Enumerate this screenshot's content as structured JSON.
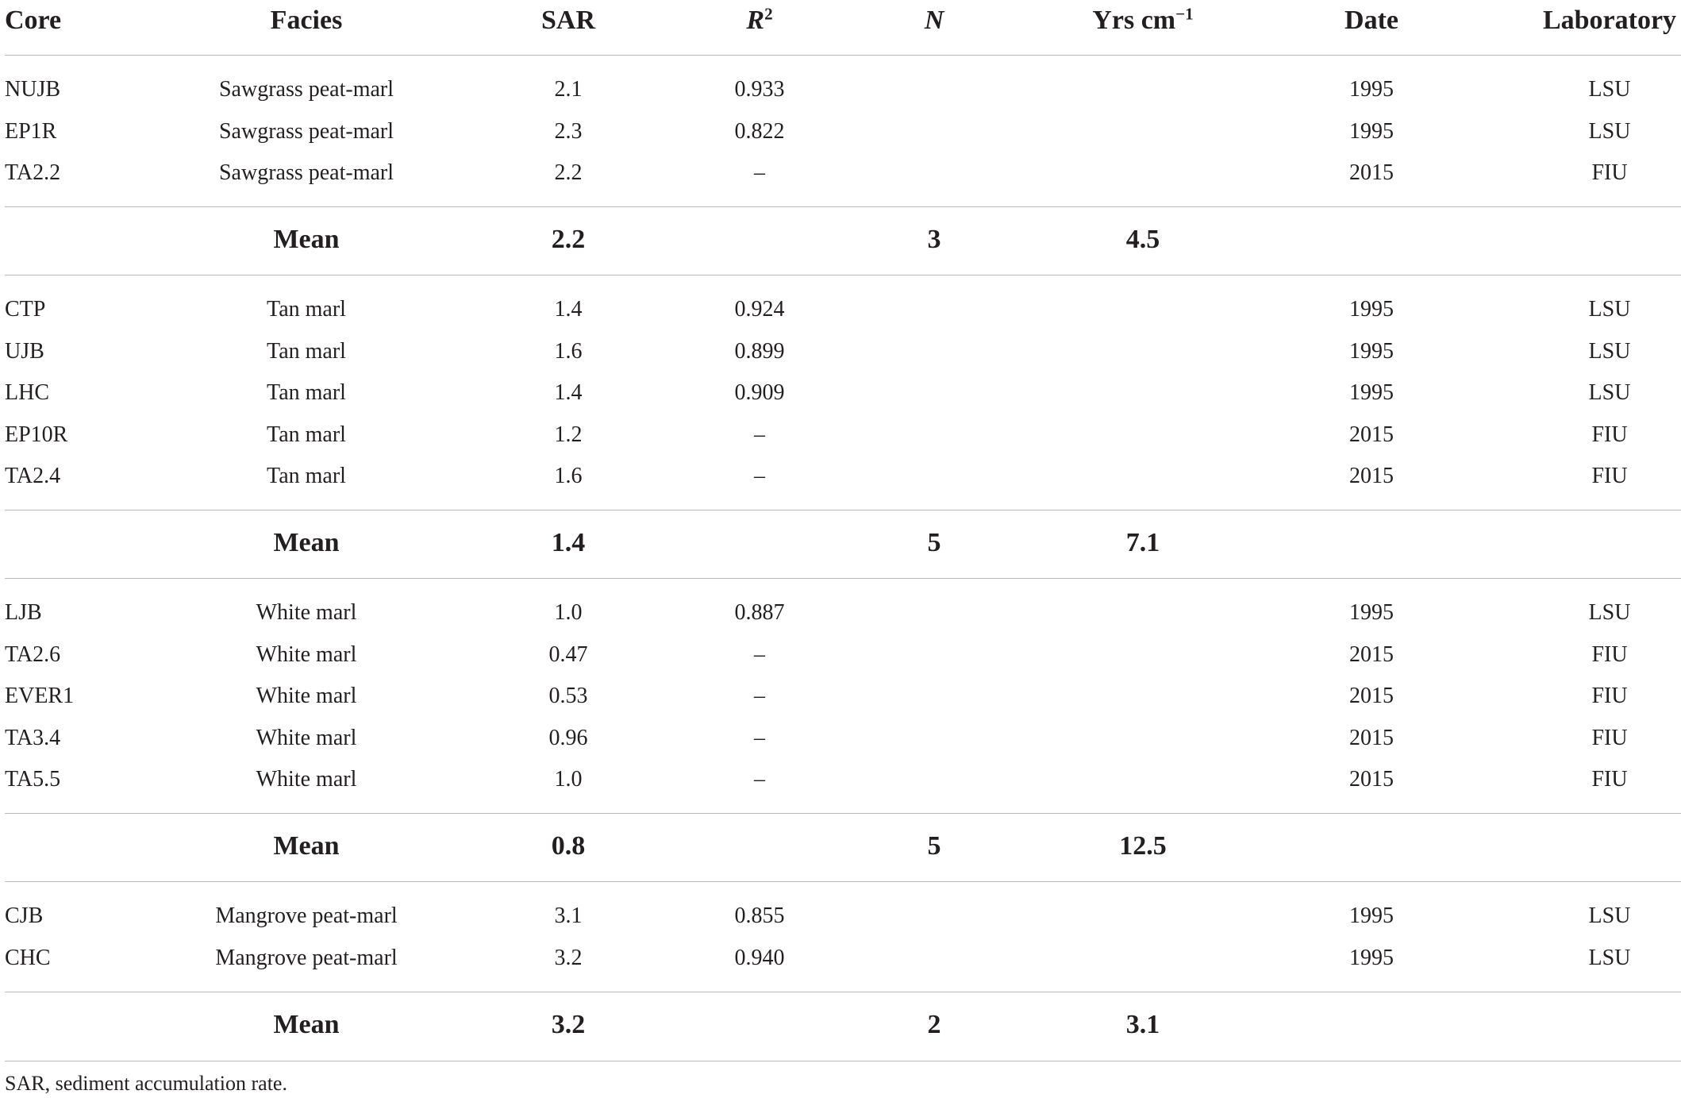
{
  "table": {
    "headers": {
      "core": "Core",
      "facies": "Facies",
      "sar": "SAR",
      "r2_base": "R",
      "r2_sup": "2",
      "n": "N",
      "yrs_base": "Yrs cm",
      "yrs_sup": "−1",
      "date": "Date",
      "laboratory": "Laboratory"
    },
    "groups": [
      {
        "rows": [
          {
            "core": "NUJB",
            "facies": "Sawgrass peat-marl",
            "sar": "2.1",
            "r2": "0.933",
            "date": "1995",
            "lab": "LSU"
          },
          {
            "core": "EP1R",
            "facies": "Sawgrass peat-marl",
            "sar": "2.3",
            "r2": "0.822",
            "date": "1995",
            "lab": "LSU"
          },
          {
            "core": "TA2.2",
            "facies": "Sawgrass peat-marl",
            "sar": "2.2",
            "r2": "–",
            "date": "2015",
            "lab": "FIU"
          }
        ],
        "mean": {
          "label": "Mean",
          "sar": "2.2",
          "n": "3",
          "yrs": "4.5"
        }
      },
      {
        "rows": [
          {
            "core": "CTP",
            "facies": "Tan marl",
            "sar": "1.4",
            "r2": "0.924",
            "date": "1995",
            "lab": "LSU"
          },
          {
            "core": "UJB",
            "facies": "Tan marl",
            "sar": "1.6",
            "r2": "0.899",
            "date": "1995",
            "lab": "LSU"
          },
          {
            "core": "LHC",
            "facies": "Tan marl",
            "sar": "1.4",
            "r2": "0.909",
            "date": "1995",
            "lab": "LSU"
          },
          {
            "core": "EP10R",
            "facies": "Tan marl",
            "sar": "1.2",
            "r2": "–",
            "date": "2015",
            "lab": "FIU"
          },
          {
            "core": "TA2.4",
            "facies": "Tan marl",
            "sar": "1.6",
            "r2": "–",
            "date": "2015",
            "lab": "FIU"
          }
        ],
        "mean": {
          "label": "Mean",
          "sar": "1.4",
          "n": "5",
          "yrs": "7.1"
        }
      },
      {
        "rows": [
          {
            "core": "LJB",
            "facies": "White marl",
            "sar": "1.0",
            "r2": "0.887",
            "date": "1995",
            "lab": "LSU"
          },
          {
            "core": "TA2.6",
            "facies": "White marl",
            "sar": "0.47",
            "r2": "–",
            "date": "2015",
            "lab": "FIU"
          },
          {
            "core": "EVER1",
            "facies": "White marl",
            "sar": "0.53",
            "r2": "–",
            "date": "2015",
            "lab": "FIU"
          },
          {
            "core": "TA3.4",
            "facies": "White marl",
            "sar": "0.96",
            "r2": "–",
            "date": "2015",
            "lab": "FIU"
          },
          {
            "core": "TA5.5",
            "facies": "White marl",
            "sar": "1.0",
            "r2": "–",
            "date": "2015",
            "lab": "FIU"
          }
        ],
        "mean": {
          "label": "Mean",
          "sar": "0.8",
          "n": "5",
          "yrs": "12.5"
        }
      },
      {
        "rows": [
          {
            "core": "CJB",
            "facies": "Mangrove peat-marl",
            "sar": "3.1",
            "r2": "0.855",
            "date": "1995",
            "lab": "LSU"
          },
          {
            "core": "CHC",
            "facies": "Mangrove peat-marl",
            "sar": "3.2",
            "r2": "0.940",
            "date": "1995",
            "lab": "LSU"
          }
        ],
        "mean": {
          "label": "Mean",
          "sar": "3.2",
          "n": "2",
          "yrs": "3.1"
        }
      }
    ]
  },
  "footnote": "SAR, sediment accumulation rate."
}
